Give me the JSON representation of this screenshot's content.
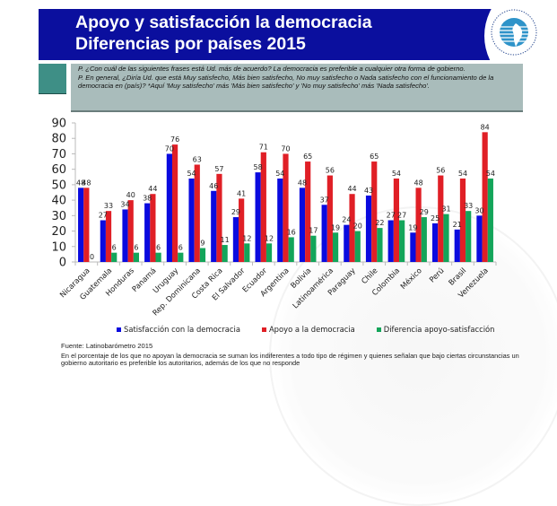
{
  "header": {
    "title_line1": "Apoyo y satisfacción la democracia",
    "title_line2": "Diferencias por países 2015",
    "logo_icon": "latinobarometro-logo-icon",
    "colors": {
      "header_bg": "#0b0f9e",
      "question_box": "#a9bcbb",
      "tab": "#3e8f86"
    }
  },
  "question": {
    "line1": "P. ¿Con cuál de las siguientes frases está Ud. más de acuerdo? La democracia es preferible a cualquier otra forma de gobierno.",
    "line2": "P. En general, ¿Diría Ud. que está Muy satisfecho, Más bien satisfecho, No muy satisfecho o Nada satisfecho con el funcionamiento de la democracia en (país)? *Aquí 'Muy satisfecho' más 'Más bien satisfecho' y 'No muy satisfecho' más 'Nada satisfecho'."
  },
  "chart_data": {
    "type": "bar",
    "title": "",
    "xlabel": "",
    "ylabel": "",
    "ylim": [
      0,
      90
    ],
    "yticks": [
      0,
      10,
      20,
      30,
      40,
      50,
      60,
      70,
      80,
      90
    ],
    "grid": false,
    "legend_position": "bottom",
    "categories": [
      "Nicaragua",
      "Guatemala",
      "Honduras",
      "Panamá",
      "Uruguay",
      "Rep. Dominicana",
      "Costa Rica",
      "El Salvador",
      "Ecuador",
      "Argentina",
      "Bolivia",
      "Latinoamérica",
      "Paraguay",
      "Chile",
      "Colombia",
      "México",
      "Perú",
      "Brasil",
      "Venezuela"
    ],
    "series": [
      {
        "name": "Satisfacción con la democracia",
        "color": "#0a0adf",
        "values": [
          48,
          27,
          34,
          38,
          70,
          54,
          46,
          29,
          58,
          54,
          48,
          37,
          24,
          43,
          27,
          19,
          25,
          21,
          30
        ]
      },
      {
        "name": "Apoyo a la democracia",
        "color": "#e01f26",
        "values": [
          48,
          33,
          40,
          44,
          76,
          63,
          57,
          41,
          71,
          70,
          65,
          56,
          44,
          65,
          54,
          48,
          56,
          54,
          84
        ]
      },
      {
        "name": "Diferencia apoyo-satisfacción",
        "color": "#13a55a",
        "values": [
          0,
          6,
          6,
          6,
          6,
          9,
          11,
          12,
          12,
          16,
          17,
          19,
          20,
          22,
          27,
          29,
          31,
          33,
          54
        ]
      }
    ]
  },
  "footer": {
    "source": "Fuente: Latinobarómetro 2015",
    "note": "En el porcentaje de los que no apoyan la democracia se suman los indiferentes a todo tipo de régimen y quienes señalan que bajo ciertas circunstancias un gobierno autoritario es preferible los autoritarios, además de los que no responde"
  }
}
